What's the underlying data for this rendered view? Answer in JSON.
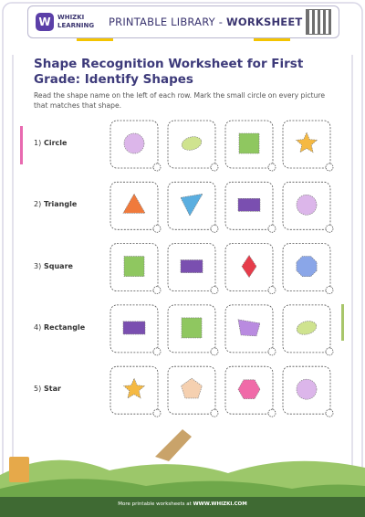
{
  "header": {
    "brand_line1": "WHIZKI",
    "brand_line2": "LEARNING",
    "title_prefix": "PRINTABLE LIBRARY - ",
    "title_bold": "WORKSHEET"
  },
  "worksheet": {
    "title": "Shape Recognition Worksheet for First Grade: Identify Shapes",
    "instructions": "Read the shape name on the left of each row. Mark the small circle on every picture that matches that shape.",
    "rows": [
      {
        "number": "1)",
        "label": "Circle"
      },
      {
        "number": "2)",
        "label": "Triangle"
      },
      {
        "number": "3)",
        "label": "Square"
      },
      {
        "number": "4)",
        "label": "Rectangle"
      },
      {
        "number": "5)",
        "label": "Star"
      }
    ]
  },
  "footer": {
    "prefix": "More printable worksheets at ",
    "url": "WWW.WHIZKI.COM"
  }
}
